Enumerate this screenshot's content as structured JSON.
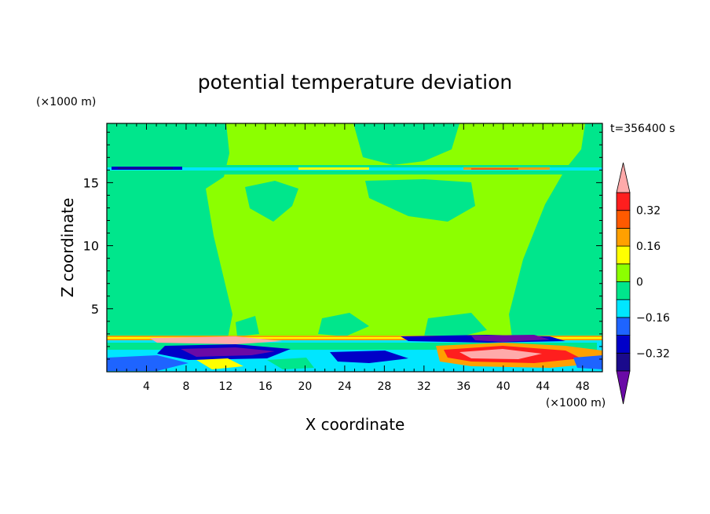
{
  "chart_data": {
    "type": "heatmap",
    "title": "potential temperature deviation",
    "xlabel": "X coordinate",
    "ylabel": "Z coordinate",
    "x_unit": "(×1000 m)",
    "y_unit": "(×1000 m)",
    "time_label": "t=356400 s",
    "xlim": [
      0,
      50
    ],
    "ylim": [
      0,
      19.7
    ],
    "x_ticks": [
      4,
      8,
      12,
      16,
      20,
      24,
      28,
      32,
      36,
      40,
      44,
      48
    ],
    "x_tick_labels": [
      "4",
      "8",
      "12",
      "16",
      "20",
      "24",
      "28",
      "32",
      "36",
      "40",
      "44",
      "48"
    ],
    "y_ticks": [
      5,
      10,
      15
    ],
    "y_tick_labels": [
      "5",
      "10",
      "15"
    ],
    "colorbar": {
      "levels": [
        -0.4,
        -0.32,
        -0.24,
        -0.16,
        -0.08,
        0,
        0.08,
        0.16,
        0.24,
        0.32,
        0.4
      ],
      "tick_values": [
        -0.32,
        -0.16,
        0,
        0.16,
        0.32
      ],
      "tick_labels": [
        "−0.32",
        "−0.16",
        "0",
        "0.16",
        "0.32"
      ],
      "bin_colors": [
        "#1a0a8c",
        "#0000c8",
        "#1e64ff",
        "#00e6ff",
        "#00e68c",
        "#8cff00",
        "#ffff00",
        "#ffa000",
        "#ff5a00",
        "#ff1e1e"
      ],
      "under_color": "#6a0aa6",
      "over_color": "#ffaaaa"
    },
    "field_colors": {
      "background": "#8cff00",
      "negative_weak": "#00e68c"
    }
  }
}
